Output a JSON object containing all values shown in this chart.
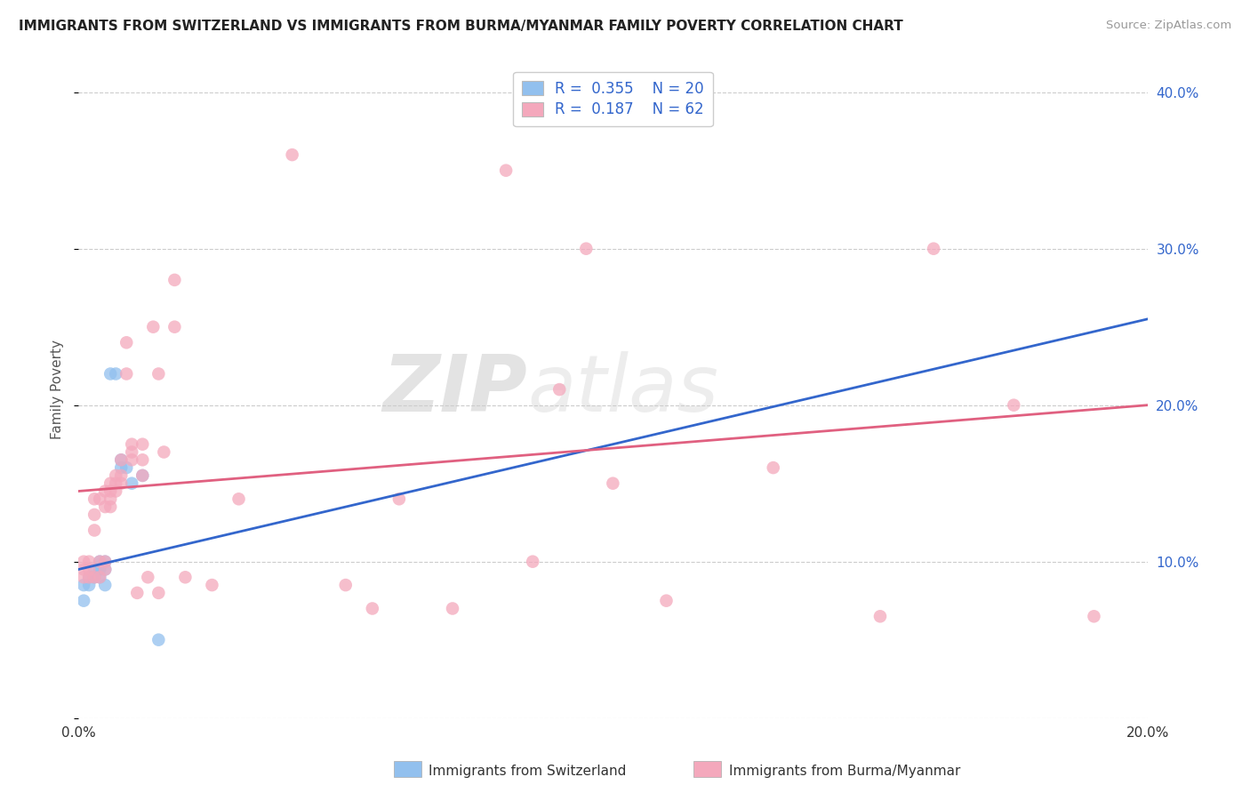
{
  "title": "IMMIGRANTS FROM SWITZERLAND VS IMMIGRANTS FROM BURMA/MYANMAR FAMILY POVERTY CORRELATION CHART",
  "source": "Source: ZipAtlas.com",
  "ylabel": "Family Poverty",
  "y_ticks": [
    0.0,
    0.1,
    0.2,
    0.3,
    0.4
  ],
  "y_tick_labels": [
    "",
    "10.0%",
    "20.0%",
    "30.0%",
    "40.0%"
  ],
  "x_ticks": [
    0.0,
    0.05,
    0.1,
    0.15,
    0.2
  ],
  "x_tick_labels": [
    "0.0%",
    "",
    "",
    "",
    "20.0%"
  ],
  "xlim": [
    0.0,
    0.2
  ],
  "ylim": [
    0.0,
    0.42
  ],
  "legend_label1": "Immigrants from Switzerland",
  "legend_label2": "Immigrants from Burma/Myanmar",
  "R1": "0.355",
  "N1": "20",
  "R2": "0.187",
  "N2": "62",
  "color_blue": "#92C0EE",
  "color_pink": "#F4A8BC",
  "line_color_blue": "#3366CC",
  "line_color_pink": "#E06080",
  "background_color": "#ffffff",
  "grid_color": "#cccccc",
  "watermark": "ZIPatlas",
  "swiss_x": [
    0.001,
    0.001,
    0.002,
    0.002,
    0.003,
    0.003,
    0.004,
    0.004,
    0.004,
    0.005,
    0.005,
    0.005,
    0.006,
    0.007,
    0.008,
    0.008,
    0.009,
    0.01,
    0.012,
    0.015
  ],
  "swiss_y": [
    0.085,
    0.075,
    0.09,
    0.085,
    0.095,
    0.09,
    0.09,
    0.095,
    0.1,
    0.095,
    0.085,
    0.1,
    0.22,
    0.22,
    0.16,
    0.165,
    0.16,
    0.15,
    0.155,
    0.05
  ],
  "burma_x": [
    0.001,
    0.001,
    0.001,
    0.002,
    0.002,
    0.002,
    0.003,
    0.003,
    0.003,
    0.003,
    0.004,
    0.004,
    0.004,
    0.005,
    0.005,
    0.005,
    0.005,
    0.006,
    0.006,
    0.006,
    0.006,
    0.007,
    0.007,
    0.007,
    0.008,
    0.008,
    0.008,
    0.009,
    0.009,
    0.01,
    0.01,
    0.01,
    0.011,
    0.012,
    0.012,
    0.012,
    0.013,
    0.014,
    0.015,
    0.015,
    0.016,
    0.018,
    0.018,
    0.02,
    0.025,
    0.03,
    0.04,
    0.05,
    0.055,
    0.06,
    0.07,
    0.08,
    0.085,
    0.09,
    0.095,
    0.1,
    0.11,
    0.13,
    0.15,
    0.16,
    0.175,
    0.19
  ],
  "burma_y": [
    0.09,
    0.1,
    0.095,
    0.09,
    0.1,
    0.095,
    0.12,
    0.13,
    0.14,
    0.09,
    0.09,
    0.1,
    0.14,
    0.1,
    0.135,
    0.145,
    0.095,
    0.135,
    0.14,
    0.145,
    0.15,
    0.145,
    0.15,
    0.155,
    0.15,
    0.155,
    0.165,
    0.22,
    0.24,
    0.165,
    0.175,
    0.17,
    0.08,
    0.155,
    0.165,
    0.175,
    0.09,
    0.25,
    0.22,
    0.08,
    0.17,
    0.25,
    0.28,
    0.09,
    0.085,
    0.14,
    0.36,
    0.085,
    0.07,
    0.14,
    0.07,
    0.35,
    0.1,
    0.21,
    0.3,
    0.15,
    0.075,
    0.16,
    0.065,
    0.3,
    0.2,
    0.065
  ],
  "line_blue_x0": 0.0,
  "line_blue_y0": 0.095,
  "line_blue_x1": 0.2,
  "line_blue_y1": 0.255,
  "line_pink_x0": 0.0,
  "line_pink_y0": 0.145,
  "line_pink_x1": 0.2,
  "line_pink_y1": 0.2
}
